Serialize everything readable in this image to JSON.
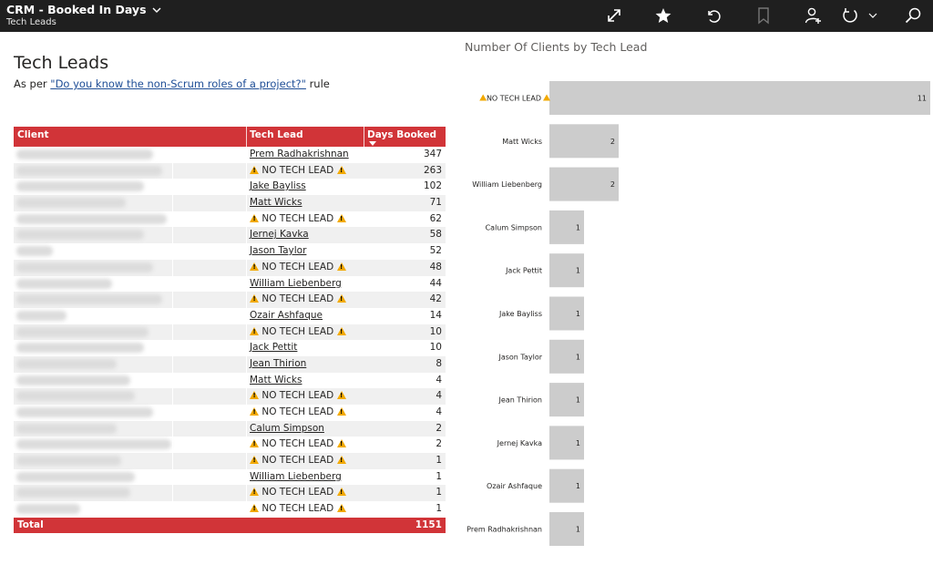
{
  "header": {
    "title": "CRM - Booked In Days",
    "subtitle": "Tech Leads",
    "icons": [
      "expand-icon",
      "star-icon",
      "undo-icon",
      "bookmark-icon",
      "add-user-icon",
      "refresh-icon",
      "chevron-down-icon",
      "search-icon"
    ]
  },
  "report": {
    "title": "Tech Leads",
    "subtitle_prefix": "As per ",
    "subtitle_link": "\"Do you know the non-Scrum roles of a project?\"",
    "subtitle_suffix": " rule"
  },
  "table": {
    "columns": [
      "Client",
      "Tech Lead",
      "Days Booked"
    ],
    "rows": [
      {
        "lead": "Prem Radhakrishnan",
        "days": "347",
        "warn": false
      },
      {
        "lead": "NO TECH LEAD",
        "days": "263",
        "warn": true
      },
      {
        "lead": "Jake Bayliss",
        "days": "102",
        "warn": false
      },
      {
        "lead": "Matt Wicks",
        "days": "71",
        "warn": false
      },
      {
        "lead": "NO TECH LEAD",
        "days": "62",
        "warn": true
      },
      {
        "lead": "Jernej Kavka",
        "days": "58",
        "warn": false
      },
      {
        "lead": "Jason Taylor",
        "days": "52",
        "warn": false
      },
      {
        "lead": "NO TECH LEAD",
        "days": "48",
        "warn": true
      },
      {
        "lead": "William Liebenberg",
        "days": "44",
        "warn": false
      },
      {
        "lead": "NO TECH LEAD",
        "days": "42",
        "warn": true
      },
      {
        "lead": "Ozair Ashfaque",
        "days": "14",
        "warn": false
      },
      {
        "lead": "NO TECH LEAD",
        "days": "10",
        "warn": true
      },
      {
        "lead": "Jack Pettit",
        "days": "10",
        "warn": false
      },
      {
        "lead": "Jean Thirion",
        "days": "8",
        "warn": false
      },
      {
        "lead": "Matt Wicks",
        "days": "4",
        "warn": false
      },
      {
        "lead": "NO TECH LEAD",
        "days": "4",
        "warn": true
      },
      {
        "lead": "NO TECH LEAD",
        "days": "4",
        "warn": true
      },
      {
        "lead": "Calum Simpson",
        "days": "2",
        "warn": false
      },
      {
        "lead": "NO TECH LEAD",
        "days": "2",
        "warn": true
      },
      {
        "lead": "NO TECH LEAD",
        "days": "1",
        "warn": true
      },
      {
        "lead": "William Liebenberg",
        "days": "1",
        "warn": false
      },
      {
        "lead": "NO TECH LEAD",
        "days": "1",
        "warn": true
      },
      {
        "lead": "NO TECH LEAD",
        "days": "1",
        "warn": true
      }
    ],
    "total_label": "Total",
    "total_value": "1151"
  },
  "colors": {
    "header_red": "#d13438",
    "bar_gray": "#cccccc",
    "warning": "#f2a900"
  },
  "chart_data": {
    "type": "bar",
    "orientation": "horizontal",
    "title": "Number Of Clients by Tech Lead",
    "categories": [
      "NO TECH LEAD",
      "Matt Wicks",
      "William Liebenberg",
      "Calum Simpson",
      "Jack Pettit",
      "Jake Bayliss",
      "Jason Taylor",
      "Jean Thirion",
      "Jernej Kavka",
      "Ozair Ashfaque",
      "Prem Radhakrishnan"
    ],
    "values": [
      11,
      2,
      2,
      1,
      1,
      1,
      1,
      1,
      1,
      1,
      1
    ],
    "category_warn": [
      true,
      false,
      false,
      false,
      false,
      false,
      false,
      false,
      false,
      false,
      false
    ],
    "xlim": [
      0,
      11
    ],
    "grid": false,
    "data_labels": true
  }
}
